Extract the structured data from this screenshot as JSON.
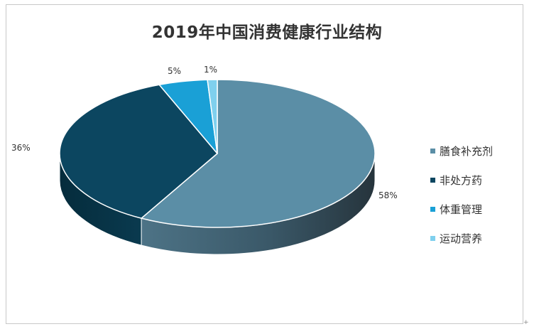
{
  "chart_data": {
    "type": "pie",
    "title": "2019年中国消费健康行业结构",
    "categories": [
      "膳食补充剂",
      "非处方药",
      "体重管理",
      "运动营养"
    ],
    "values": [
      58,
      36,
      5,
      1
    ],
    "labels": [
      "58%",
      "36%",
      "5%",
      "1%"
    ],
    "colors": [
      "#5b8ea6",
      "#0c4660",
      "#1aa0d6",
      "#7fd0ee"
    ],
    "legend_position": "right",
    "style": "3d"
  }
}
